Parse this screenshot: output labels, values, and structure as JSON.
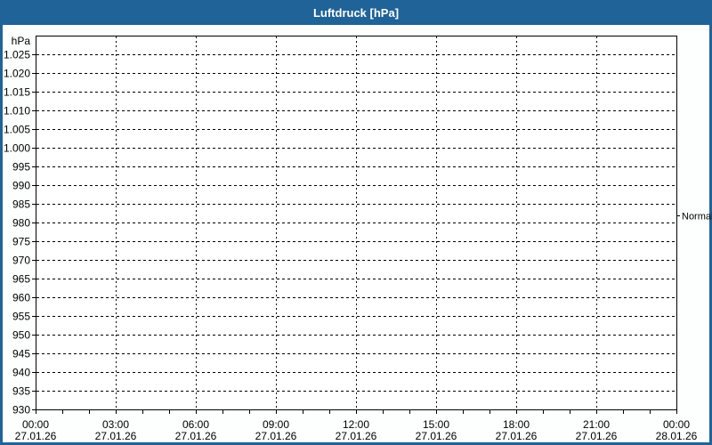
{
  "window": {
    "title": "Luftdruck [hPa]"
  },
  "colors": {
    "titlebar_bg": "#1f6398",
    "titlebar_text": "#ffffff",
    "window_border": "#1f6398",
    "canvas_bg": "#fdfefe",
    "plot_bg": "#ffffff",
    "axis": "#000000",
    "grid": "#000000",
    "label_text": "#000000"
  },
  "chart_data": {
    "type": "line",
    "title": "Luftdruck [hPa]",
    "y_unit_label": "hPa",
    "ylim": [
      930,
      1030
    ],
    "grid": "dashed",
    "legend": "none",
    "yticks": [
      {
        "value": 1025,
        "label": "1.025"
      },
      {
        "value": 1020,
        "label": "1.020"
      },
      {
        "value": 1015,
        "label": "1.015"
      },
      {
        "value": 1010,
        "label": "1.010"
      },
      {
        "value": 1005,
        "label": "1.005"
      },
      {
        "value": 1000,
        "label": "1.000"
      },
      {
        "value": 995,
        "label": "995"
      },
      {
        "value": 990,
        "label": "990"
      },
      {
        "value": 985,
        "label": "985"
      },
      {
        "value": 980,
        "label": "980"
      },
      {
        "value": 975,
        "label": "975"
      },
      {
        "value": 970,
        "label": "970"
      },
      {
        "value": 965,
        "label": "965"
      },
      {
        "value": 960,
        "label": "960"
      },
      {
        "value": 955,
        "label": "955"
      },
      {
        "value": 950,
        "label": "950"
      },
      {
        "value": 945,
        "label": "945"
      },
      {
        "value": 940,
        "label": "940"
      },
      {
        "value": 935,
        "label": "935"
      },
      {
        "value": 930,
        "label": "930"
      }
    ],
    "x_span_hours": 24,
    "x_major_every_hours": 3,
    "x_minor_every_hours": 1,
    "xticks": [
      {
        "hour": 0,
        "time": "00:00",
        "date": "27.01.26"
      },
      {
        "hour": 3,
        "time": "03:00",
        "date": "27.01.26"
      },
      {
        "hour": 6,
        "time": "06:00",
        "date": "27.01.26"
      },
      {
        "hour": 9,
        "time": "09:00",
        "date": "27.01.26"
      },
      {
        "hour": 12,
        "time": "12:00",
        "date": "27.01.26"
      },
      {
        "hour": 15,
        "time": "15:00",
        "date": "27.01.26"
      },
      {
        "hour": 18,
        "time": "18:00",
        "date": "27.01.26"
      },
      {
        "hour": 21,
        "time": "21:00",
        "date": "27.01.26"
      },
      {
        "hour": 24,
        "time": "00:00",
        "date": "28.01.26"
      }
    ],
    "series": [],
    "annotations": [
      {
        "label": "Normal",
        "value_hpa": 982,
        "side": "right"
      }
    ]
  }
}
